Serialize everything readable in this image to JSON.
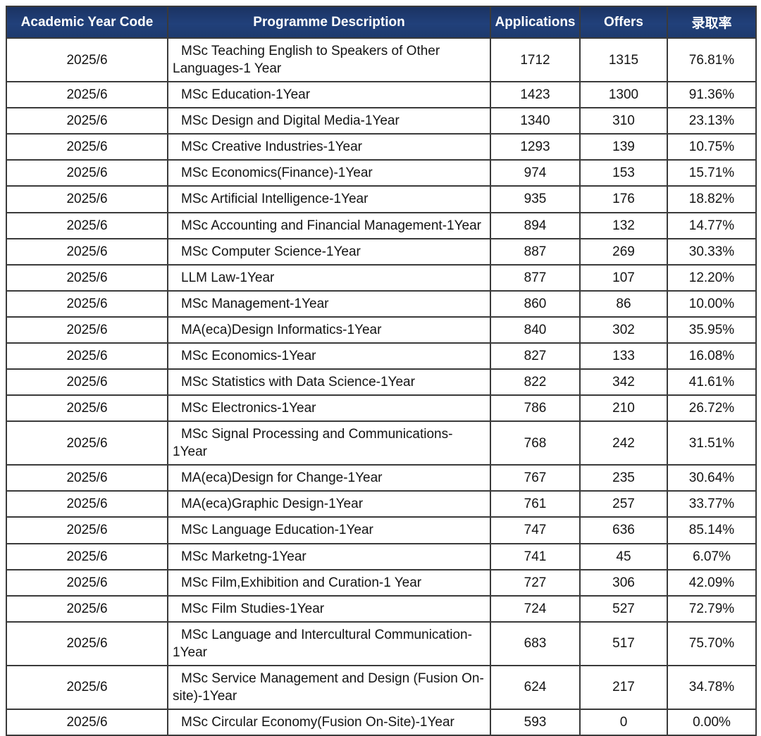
{
  "colors": {
    "header_bg": "#1f3a6b",
    "header_text": "#ffffff",
    "grid_border": "#3a3a3a",
    "cell_text": "#141414",
    "row_bg": "#ffffff"
  },
  "chart_data": {
    "type": "table",
    "title": "",
    "columns": [
      "Academic Year Code",
      "Programme Description",
      "Applications",
      "Offers",
      "录取率"
    ],
    "rows": [
      [
        "2025/6",
        "MSc Teaching English to Speakers of Other Languages-1 Year",
        1712,
        1315,
        "76.81%"
      ],
      [
        "2025/6",
        "MSc Education-1Year",
        1423,
        1300,
        "91.36%"
      ],
      [
        "2025/6",
        "MSc Design and Digital Media-1Year",
        1340,
        310,
        "23.13%"
      ],
      [
        "2025/6",
        "MSc Creative Industries-1Year",
        1293,
        139,
        "10.75%"
      ],
      [
        "2025/6",
        "MSc Economics(Finance)-1Year",
        974,
        153,
        "15.71%"
      ],
      [
        "2025/6",
        "MSc Artificial Intelligence-1Year",
        935,
        176,
        "18.82%"
      ],
      [
        "2025/6",
        "MSc Accounting and Financial Management-1Year",
        894,
        132,
        "14.77%"
      ],
      [
        "2025/6",
        "MSc Computer Science-1Year",
        887,
        269,
        "30.33%"
      ],
      [
        "2025/6",
        "LLM Law-1Year",
        877,
        107,
        "12.20%"
      ],
      [
        "2025/6",
        "MSc Management-1Year",
        860,
        86,
        "10.00%"
      ],
      [
        "2025/6",
        "MA(eca)Design Informatics-1Year",
        840,
        302,
        "35.95%"
      ],
      [
        "2025/6",
        "MSc Economics-1Year",
        827,
        133,
        "16.08%"
      ],
      [
        "2025/6",
        "MSc Statistics with Data Science-1Year",
        822,
        342,
        "41.61%"
      ],
      [
        "2025/6",
        "MSc Electronics-1Year",
        786,
        210,
        "26.72%"
      ],
      [
        "2025/6",
        "MSc Signal Processing and Communications-1Year",
        768,
        242,
        "31.51%"
      ],
      [
        "2025/6",
        "MA(eca)Design for Change-1Year",
        767,
        235,
        "30.64%"
      ],
      [
        "2025/6",
        "MA(eca)Graphic Design-1Year",
        761,
        257,
        "33.77%"
      ],
      [
        "2025/6",
        "MSc Language Education-1Year",
        747,
        636,
        "85.14%"
      ],
      [
        "2025/6",
        "MSc Marketng-1Year",
        741,
        45,
        "6.07%"
      ],
      [
        "2025/6",
        "MSc Film,Exhibition and Curation-1 Year",
        727,
        306,
        "42.09%"
      ],
      [
        "2025/6",
        "MSc Film Studies-1Year",
        724,
        527,
        "72.79%"
      ],
      [
        "2025/6",
        "MSc Language and Intercultural Communication-1Year",
        683,
        517,
        "75.70%"
      ],
      [
        "2025/6",
        "MSc Service Management and Design (Fusion On-site)-1Year",
        624,
        217,
        "34.78%"
      ],
      [
        "2025/6",
        "MSc Circular Economy(Fusion On-Site)-1Year",
        593,
        0,
        "0.00%"
      ]
    ]
  }
}
